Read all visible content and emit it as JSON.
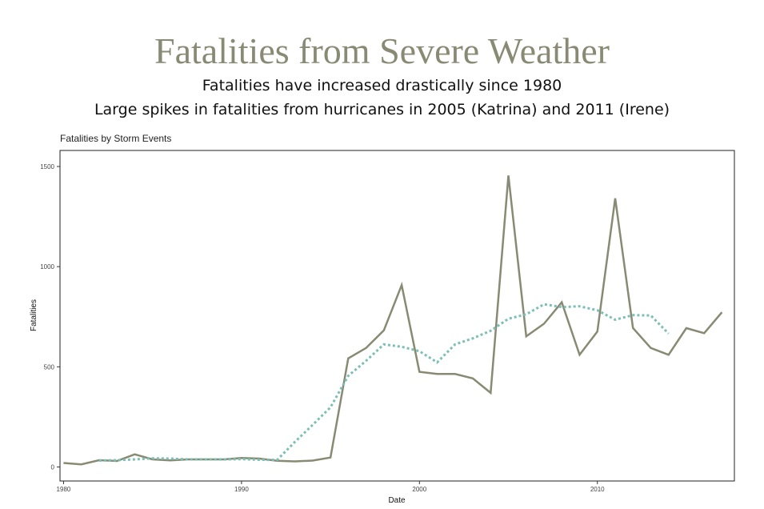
{
  "slide": {
    "title": "Fatalities from Severe Weather",
    "subtitle_lines": [
      "Fatalities have increased drastically since 1980",
      "Large spikes in fatalities from hurricanes in 2005 (Katrina) and 2011 (Irene)"
    ]
  },
  "chart_data": {
    "type": "line",
    "title": "Fatalities by Storm Events",
    "xlabel": "Date",
    "ylabel": "Fatalities",
    "xlim": [
      1979.8,
      2017.7
    ],
    "ylim": [
      -70,
      1580
    ],
    "x_ticks": [
      1980,
      1990,
      2000,
      2010
    ],
    "y_ticks": [
      0,
      500,
      1000,
      1500
    ],
    "grid": false,
    "series": [
      {
        "style": "solid",
        "color": "#888A73",
        "x": [
          1980,
          1981,
          1982,
          1983,
          1984,
          1985,
          1986,
          1987,
          1988,
          1989,
          1990,
          1991,
          1992,
          1993,
          1994,
          1995,
          1996,
          1997,
          1998,
          1999,
          2000,
          2001,
          2002,
          2003,
          2004,
          2005,
          2006,
          2007,
          2008,
          2009,
          2010,
          2011,
          2012,
          2013,
          2014,
          2015,
          2016,
          2017
        ],
        "y": [
          20,
          13,
          34,
          30,
          63,
          38,
          33,
          38,
          38,
          38,
          45,
          42,
          31,
          28,
          32,
          47,
          542,
          594,
          682,
          908,
          475,
          464,
          464,
          442,
          370,
          1455,
          652,
          715,
          822,
          560,
          676,
          1341,
          694,
          594,
          560,
          693,
          668,
          772
        ]
      },
      {
        "style": "dotted",
        "color": "#7BBFB5",
        "x": [
          1982,
          1983,
          1984,
          1985,
          1986,
          1987,
          1988,
          1989,
          1990,
          1991,
          1992,
          1993,
          1994,
          1995,
          1996,
          1997,
          1998,
          1999,
          2000,
          2001,
          2002,
          2003,
          2004,
          2005,
          2006,
          2007,
          2008,
          2009,
          2010,
          2011,
          2012,
          2013,
          2014
        ],
        "y": [
          32,
          34,
          38,
          43,
          42,
          38,
          38,
          38,
          39,
          36,
          35,
          125,
          210,
          298,
          455,
          530,
          612,
          600,
          578,
          522,
          612,
          642,
          680,
          740,
          762,
          812,
          798,
          802,
          782,
          735,
          758,
          756,
          666
        ]
      }
    ]
  }
}
